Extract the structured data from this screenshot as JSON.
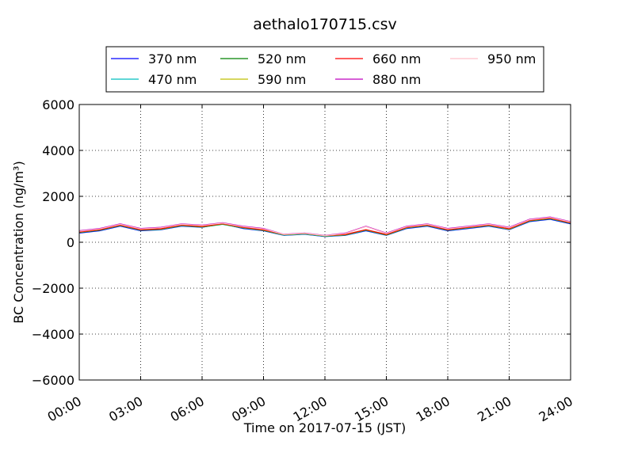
{
  "chart_data": {
    "type": "line",
    "title": "aethalo170715.csv",
    "xlabel": "Time on 2017-07-15 (JST)",
    "ylabel": "BC Concentration (ng/m³)",
    "xlim": [
      "00:00",
      "24:00"
    ],
    "ylim": [
      -6000,
      6000
    ],
    "x_ticks": [
      "00:00",
      "03:00",
      "06:00",
      "09:00",
      "12:00",
      "15:00",
      "18:00",
      "21:00",
      "24:00"
    ],
    "y_ticks": [
      "6000",
      "4000",
      "2000",
      "0",
      "−2000",
      "−4000",
      "−6000"
    ],
    "y_tick_values": [
      6000,
      4000,
      2000,
      0,
      -2000,
      -4000,
      -6000
    ],
    "grid": true,
    "legend_placement": "above-plot",
    "series": [
      {
        "name": "370 nm",
        "color": "#0000ff",
        "hours": [
          0,
          1,
          2,
          3,
          4,
          5,
          6,
          7,
          8,
          9,
          10,
          11,
          12,
          13,
          14,
          15,
          16,
          17,
          18,
          19,
          20,
          21,
          22,
          23,
          24
        ],
        "values": [
          400,
          500,
          700,
          500,
          550,
          700,
          650,
          800,
          600,
          500,
          300,
          350,
          250,
          300,
          500,
          300,
          600,
          700,
          500,
          600,
          700,
          550,
          900,
          1000,
          800
        ]
      },
      {
        "name": "470 nm",
        "color": "#00bfbf",
        "hours": [
          0,
          1,
          2,
          3,
          4,
          5,
          6,
          7,
          8,
          9,
          10,
          11,
          12,
          13,
          14,
          15,
          16,
          17,
          18,
          19,
          20,
          21,
          22,
          23,
          24
        ],
        "values": [
          420,
          520,
          720,
          520,
          560,
          720,
          660,
          780,
          620,
          510,
          310,
          360,
          260,
          310,
          520,
          310,
          620,
          720,
          520,
          620,
          720,
          560,
          920,
          1020,
          820
        ]
      },
      {
        "name": "520 nm",
        "color": "#008000",
        "hours": [
          0,
          1,
          2,
          3,
          4,
          5,
          6,
          7,
          8,
          9,
          10,
          11,
          12,
          13,
          14,
          15,
          16,
          17,
          18,
          19,
          20,
          21,
          22,
          23,
          24
        ],
        "values": [
          430,
          530,
          730,
          530,
          570,
          730,
          670,
          790,
          630,
          520,
          320,
          370,
          270,
          320,
          530,
          320,
          630,
          730,
          530,
          630,
          730,
          570,
          930,
          1030,
          830
        ]
      },
      {
        "name": "590 nm",
        "color": "#bfbf00",
        "hours": [
          0,
          1,
          2,
          3,
          4,
          5,
          6,
          7,
          8,
          9,
          10,
          11,
          12,
          13,
          14,
          15,
          16,
          17,
          18,
          19,
          20,
          21,
          22,
          23,
          24
        ],
        "values": [
          440,
          540,
          740,
          540,
          580,
          740,
          680,
          800,
          640,
          530,
          330,
          380,
          280,
          330,
          540,
          330,
          640,
          740,
          540,
          640,
          740,
          580,
          940,
          1040,
          840
        ]
      },
      {
        "name": "660 nm",
        "color": "#ff0000",
        "hours": [
          0,
          1,
          2,
          3,
          4,
          5,
          6,
          7,
          8,
          9,
          10,
          11,
          12,
          13,
          14,
          15,
          16,
          17,
          18,
          19,
          20,
          21,
          22,
          23,
          24
        ],
        "values": [
          450,
          550,
          750,
          550,
          590,
          750,
          690,
          810,
          650,
          540,
          340,
          390,
          290,
          340,
          550,
          340,
          650,
          750,
          550,
          650,
          750,
          590,
          950,
          1050,
          850
        ]
      },
      {
        "name": "880 nm",
        "color": "#bf00bf",
        "hours": [
          0,
          1,
          2,
          3,
          4,
          5,
          6,
          7,
          8,
          9,
          10,
          11,
          12,
          13,
          14,
          15,
          16,
          17,
          18,
          19,
          20,
          21,
          22,
          23,
          24
        ],
        "values": [
          500,
          600,
          800,
          600,
          650,
          800,
          750,
          850,
          700,
          600,
          350,
          400,
          300,
          400,
          700,
          400,
          700,
          800,
          600,
          700,
          800,
          650,
          1000,
          1100,
          900
        ]
      },
      {
        "name": "950 nm",
        "color": "#ffc0cb",
        "hours": [
          0,
          1,
          2,
          3,
          4,
          5,
          6,
          7,
          8,
          9,
          10,
          11,
          12,
          13,
          14,
          15,
          16,
          17,
          18,
          19,
          20,
          21,
          22,
          23,
          24
        ],
        "values": [
          480,
          580,
          780,
          580,
          630,
          780,
          730,
          830,
          680,
          580,
          340,
          390,
          290,
          380,
          680,
          380,
          680,
          780,
          580,
          680,
          780,
          630,
          980,
          1080,
          880
        ]
      }
    ]
  }
}
